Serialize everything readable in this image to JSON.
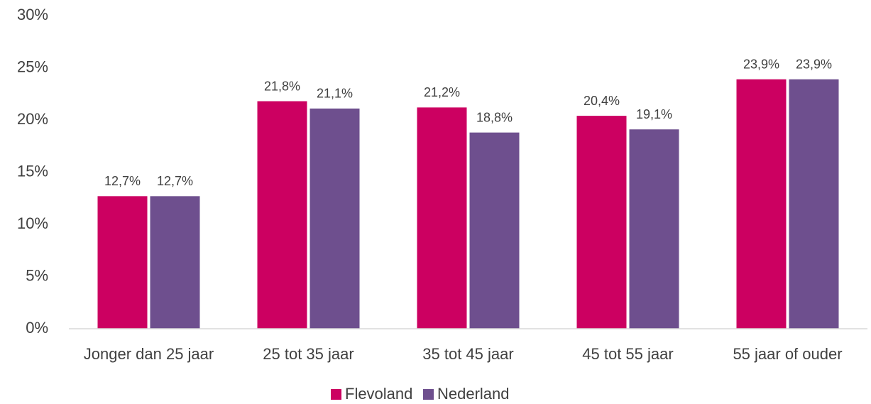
{
  "chart_data": {
    "type": "bar",
    "categories": [
      "Jonger dan 25 jaar",
      "25 tot 35 jaar",
      "35 tot 45 jaar",
      "45 tot 55 jaar",
      "55 jaar of ouder"
    ],
    "series": [
      {
        "name": "Flevoland",
        "color": "#cc0061",
        "values": [
          12.7,
          21.8,
          21.2,
          20.4,
          23.9
        ],
        "value_labels": [
          "12,7%",
          "21,8%",
          "21,2%",
          "20,4%",
          "23,9%"
        ]
      },
      {
        "name": "Nederland",
        "color": "#6e4f8e",
        "values": [
          12.7,
          21.1,
          18.8,
          19.1,
          23.9
        ],
        "value_labels": [
          "12,7%",
          "21,1%",
          "18,8%",
          "19,1%",
          "23,9%"
        ]
      }
    ],
    "ylim": [
      0,
      30
    ],
    "yticks": [
      {
        "value": 0,
        "label": "0%"
      },
      {
        "value": 5,
        "label": "5%"
      },
      {
        "value": 10,
        "label": "10%"
      },
      {
        "value": 15,
        "label": "15%"
      },
      {
        "value": 20,
        "label": "20%"
      },
      {
        "value": 25,
        "label": "25%"
      },
      {
        "value": 30,
        "label": "30%"
      }
    ],
    "grid": false,
    "legend": "bottom"
  }
}
